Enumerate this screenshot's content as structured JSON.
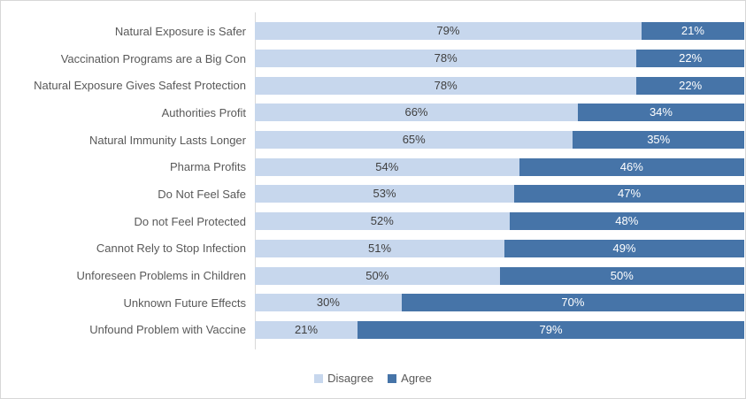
{
  "chart_data": {
    "type": "bar",
    "orientation": "horizontal",
    "stacked": true,
    "stacked_100_percent": true,
    "categories": [
      "Natural Exposure is Safer",
      "Vaccination Programs are a Big Con",
      "Natural Exposure Gives Safest Protection",
      "Authorities Profit",
      "Natural Immunity Lasts Longer",
      "Pharma Profits",
      "Do Not Feel Safe",
      "Do not Feel Protected",
      "Cannot Rely to Stop Infection",
      "Unforeseen Problems in Children",
      "Unknown Future Effects",
      "Unfound Problem with Vaccine"
    ],
    "series": [
      {
        "name": "Disagree",
        "color": "#c7d7ed",
        "label_color": "#3f3f3f",
        "values": [
          79,
          78,
          78,
          66,
          65,
          54,
          53,
          52,
          51,
          50,
          30,
          21
        ]
      },
      {
        "name": "Agree",
        "color": "#4674a8",
        "label_color": "#ffffff",
        "values": [
          21,
          22,
          22,
          34,
          35,
          46,
          47,
          48,
          49,
          50,
          70,
          79
        ]
      }
    ],
    "value_label_suffix": "%",
    "xlim": [
      0,
      100
    ],
    "grid": false,
    "legend_position": "bottom",
    "axis_line_color": "#d9d9d9",
    "category_label_color": "#595959"
  }
}
